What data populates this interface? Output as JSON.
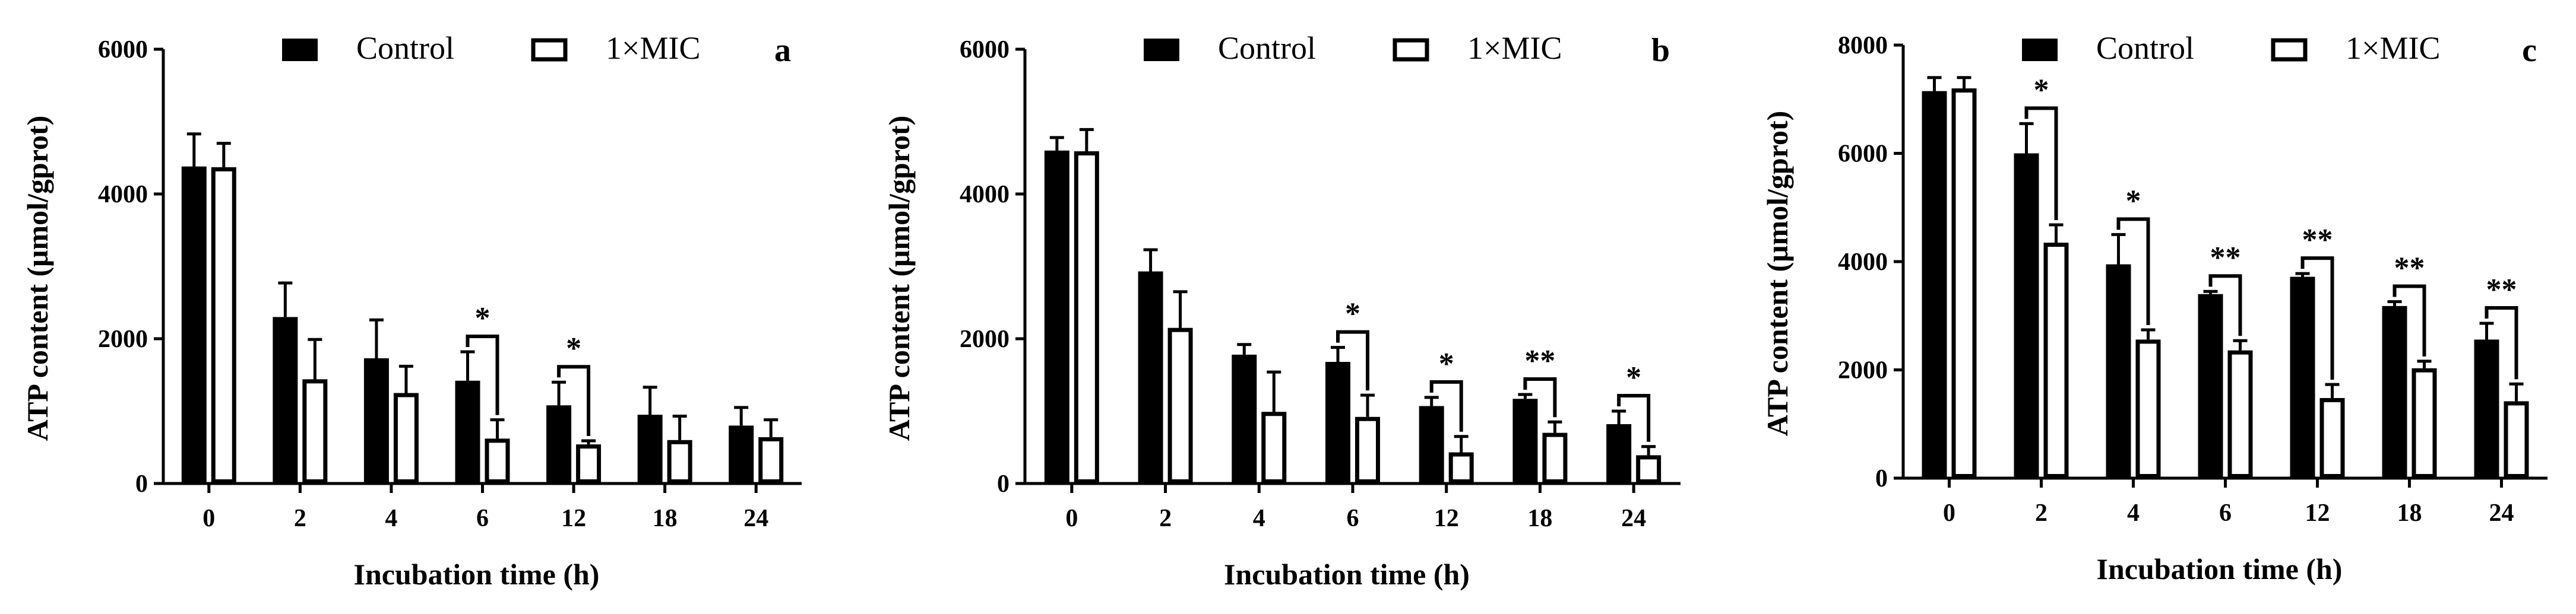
{
  "figure": {
    "panels": [
      "a",
      "b",
      "c"
    ]
  },
  "chart_data": [
    {
      "type": "bar",
      "panel_label": "a",
      "categories": [
        "0",
        "2",
        "4",
        "6",
        "12",
        "18",
        "24"
      ],
      "series": [
        {
          "name": "Control",
          "values": [
            4380,
            2300,
            1730,
            1420,
            1080,
            950,
            800
          ],
          "errors": [
            450,
            470,
            530,
            400,
            320,
            380,
            250
          ]
        },
        {
          "name": "1×MIC",
          "values": [
            4370,
            1440,
            1250,
            620,
            540,
            600,
            640
          ],
          "errors": [
            330,
            550,
            370,
            260,
            50,
            330,
            240
          ]
        }
      ],
      "significance": [
        {
          "category": "6",
          "label": "*"
        },
        {
          "category": "12",
          "label": "*"
        }
      ],
      "xlabel": "Incubation time (h)",
      "ylabel": "ATP content (μmol/gprot)",
      "ylim": [
        0,
        6000
      ],
      "yticks": [
        "0",
        "2000",
        "4000",
        "6000"
      ],
      "legend_position": "top"
    },
    {
      "type": "bar",
      "panel_label": "b",
      "categories": [
        "0",
        "2",
        "4",
        "6",
        "12",
        "18",
        "24"
      ],
      "series": [
        {
          "name": "Control",
          "values": [
            4600,
            2930,
            1780,
            1680,
            1070,
            1170,
            820
          ],
          "errors": [
            180,
            300,
            140,
            200,
            120,
            60,
            180
          ]
        },
        {
          "name": "1×MIC",
          "values": [
            4590,
            2150,
            990,
            920,
            430,
            700,
            390
          ],
          "errors": [
            300,
            500,
            550,
            300,
            220,
            150,
            120
          ]
        }
      ],
      "significance": [
        {
          "category": "6",
          "label": "*"
        },
        {
          "category": "12",
          "label": "*"
        },
        {
          "category": "18",
          "label": "**"
        },
        {
          "category": "24",
          "label": "*"
        }
      ],
      "xlabel": "Incubation time (h)",
      "ylabel": "ATP content (μmol/gprot)",
      "ylim": [
        0,
        6000
      ],
      "yticks": [
        "0",
        "2000",
        "4000",
        "6000"
      ],
      "legend_position": "top"
    },
    {
      "type": "bar",
      "panel_label": "c",
      "categories": [
        "0",
        "2",
        "4",
        "6",
        "12",
        "18",
        "24"
      ],
      "series": [
        {
          "name": "Control",
          "values": [
            7150,
            6000,
            3950,
            3400,
            3720,
            3180,
            2560
          ],
          "errors": [
            250,
            550,
            550,
            50,
            60,
            80,
            300
          ]
        },
        {
          "name": "1×MIC",
          "values": [
            7200,
            4350,
            2560,
            2360,
            1480,
            2030,
            1420
          ],
          "errors": [
            200,
            330,
            180,
            180,
            250,
            130,
            320
          ]
        }
      ],
      "significance": [
        {
          "category": "2",
          "label": "*"
        },
        {
          "category": "4",
          "label": "*"
        },
        {
          "category": "6",
          "label": "**"
        },
        {
          "category": "12",
          "label": "**"
        },
        {
          "category": "18",
          "label": "**"
        },
        {
          "category": "24",
          "label": "**"
        }
      ],
      "xlabel": "Incubation time (h)",
      "ylabel": "ATP content (μmol/gprot)",
      "ylim": [
        0,
        8000
      ],
      "yticks": [
        "0",
        "2000",
        "4000",
        "6000",
        "8000"
      ],
      "legend_position": "top"
    }
  ]
}
